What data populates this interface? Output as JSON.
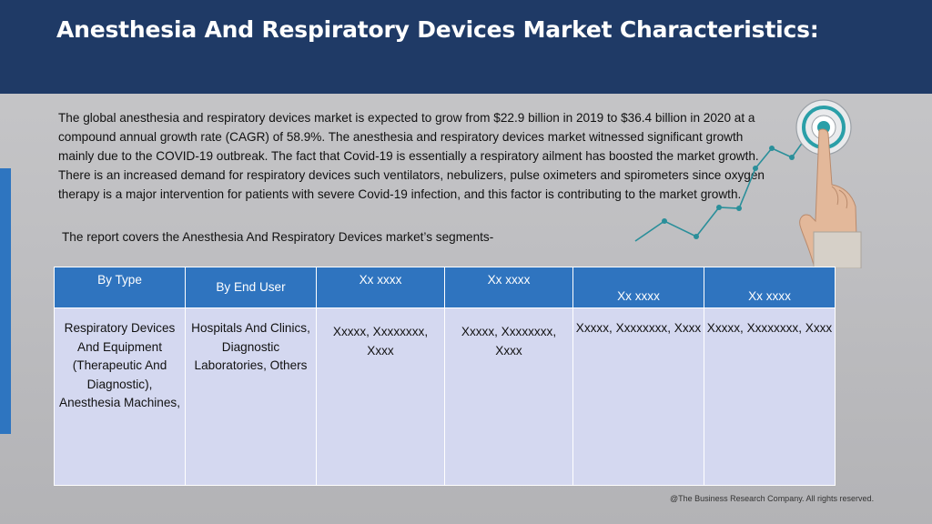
{
  "header": {
    "title": "Anesthesia And Respiratory Devices Market Characteristics:",
    "background": "#1f3a66"
  },
  "intro": {
    "paragraph": "The global anesthesia and respiratory devices market is expected to grow from $22.9 billion in 2019 to $36.4 billion in 2020 at a compound annual growth rate (CAGR) of 58.9%. The anesthesia and respiratory devices market witnessed significant growth mainly due to the COVID-19 outbreak. The fact that Covid-19 is essentially a respiratory ailment has boosted the market growth. There is an increased demand for respiratory devices such ventilators, nebulizers, pulse oximeters and spirometers since oxygen therapy is a major intervention for patients with severe Covid-19 infection, and this factor is contributing to the market growth.",
    "segments_line": "The report covers the Anesthesia And Respiratory Devices market’s segments-"
  },
  "graphic": {
    "icon": "target-hand-growth-icon",
    "accent": "#2a9fa8"
  },
  "table": {
    "header_color": "#2f74bf",
    "body_color": "#d4d8f0",
    "headers": [
      "By Type",
      "By End User",
      "Xx xxxx",
      "Xx xxxx",
      "Xx xxxx",
      "Xx xxxx"
    ],
    "cells": [
      "Respiratory Devices And Equipment (Therapeutic And Diagnostic), Anesthesia Machines,",
      "Hospitals And Clinics, Diagnostic Laboratories, Others",
      "Xxxxx, Xxxxxxxx, Xxxx",
      "Xxxxx, Xxxxxxxx, Xxxx",
      "Xxxxx, Xxxxxxxx, Xxxx",
      "Xxxxx, Xxxxxxxx, Xxxx"
    ]
  },
  "footer": {
    "copyright": "@The Business Research Company. All rights reserved."
  }
}
